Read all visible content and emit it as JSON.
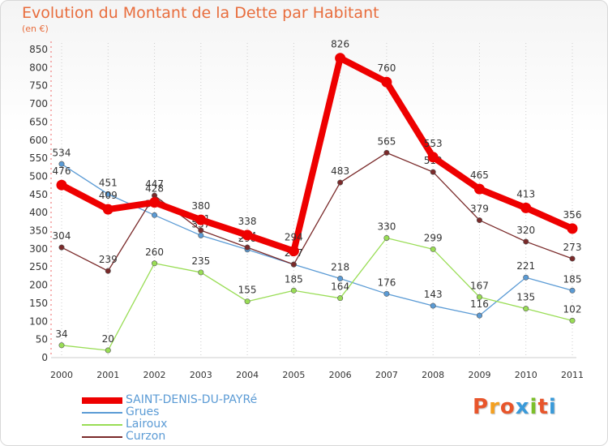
{
  "header": {
    "title": "Evolution du Montant de la Dette par Habitant",
    "unit": "(en €)"
  },
  "logo": {
    "text": "Proxiti",
    "colors": [
      "#e8552b",
      "#f4a020",
      "#e8552b",
      "#3a9ad9",
      "#7cbf2a",
      "#e8552b",
      "#3a9ad9"
    ]
  },
  "colors": {
    "title": "#e86d3d",
    "axis_text": "#333333",
    "grid": "#cccccc"
  },
  "chart_data": {
    "type": "line",
    "title": "Evolution du Montant de la Dette par Habitant",
    "ylabel": "(en €)",
    "xlabel": "",
    "ylim": [
      0,
      850
    ],
    "yticks": [
      0,
      50,
      100,
      150,
      200,
      250,
      300,
      350,
      400,
      450,
      500,
      550,
      600,
      650,
      700,
      750,
      800,
      850
    ],
    "categories": [
      "2000",
      "2001",
      "2002",
      "2003",
      "2004",
      "2005",
      "2006",
      "2007",
      "2008",
      "2009",
      "2010",
      "2011"
    ],
    "grid": "vertical dotted",
    "legend_position": "bottom-left",
    "series": [
      {
        "name": "SAINT-DENIS-DU-PAYRé",
        "color": "#ee0000",
        "emphasis": true,
        "values": [
          476,
          409,
          428,
          380,
          338,
          294,
          826,
          760,
          553,
          465,
          413,
          356
        ]
      },
      {
        "name": "Grues",
        "color": "#5b9bd5",
        "values": [
          534,
          451,
          393,
          337,
          298,
          257,
          218,
          176,
          143,
          116,
          221,
          185
        ]
      },
      {
        "name": "Lairoux",
        "color": "#99dd55",
        "values": [
          34,
          20,
          260,
          235,
          155,
          185,
          164,
          330,
          299,
          167,
          135,
          102
        ]
      },
      {
        "name": "Curzon",
        "color": "#7a2a2a",
        "values": [
          304,
          239,
          447,
          351,
          304,
          257,
          483,
          565,
          512,
          379,
          320,
          273
        ]
      }
    ],
    "data_labels": {
      "SAINT-DENIS-DU-PAYRé": [
        "476",
        "409",
        "428",
        "380",
        "338",
        "294",
        "826",
        "760",
        "553",
        "465",
        "413",
        "356"
      ],
      "Grues": [
        "534",
        "451",
        "393",
        "337",
        "298",
        "257",
        "218",
        "176",
        "143",
        "116",
        "221",
        "185"
      ],
      "Lairoux": [
        "34",
        "20",
        "260",
        "235",
        "155",
        "185",
        "164",
        "330",
        "299",
        "167",
        "135",
        "102"
      ],
      "Curzon": [
        "304",
        "239",
        "447",
        "351",
        "304",
        "257",
        "483",
        "565",
        "512",
        "379",
        "320",
        "273"
      ]
    }
  }
}
